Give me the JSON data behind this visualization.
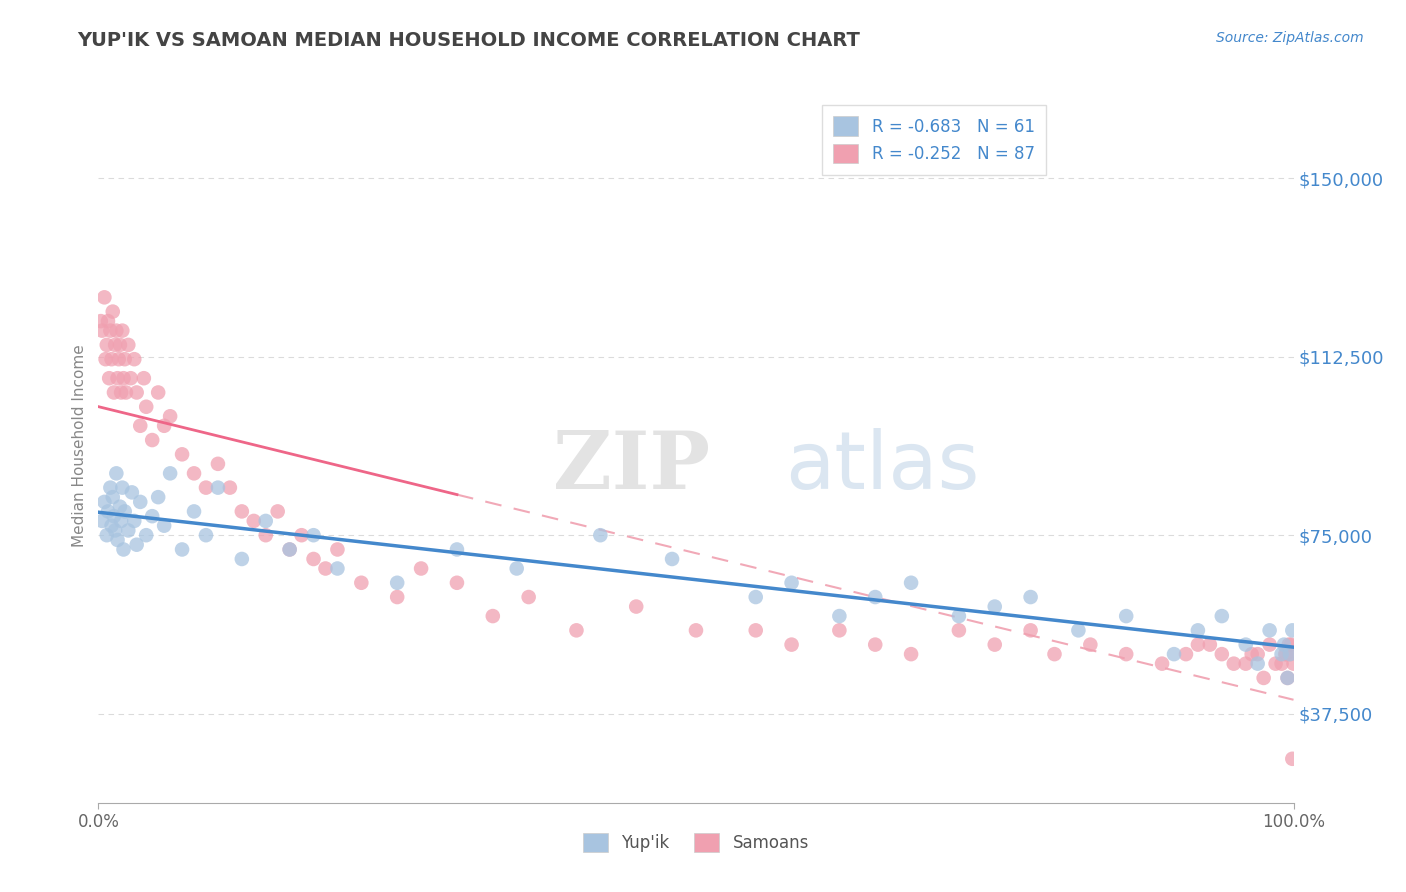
{
  "title": "YUP'IK VS SAMOAN MEDIAN HOUSEHOLD INCOME CORRELATION CHART",
  "source_text": "Source: ZipAtlas.com",
  "ylabel": "Median Household Income",
  "xlim": [
    0.0,
    100.0
  ],
  "ylim": [
    18750,
    168750
  ],
  "yticks": [
    37500,
    75000,
    112500,
    150000
  ],
  "ytick_labels": [
    "$37,500",
    "$75,000",
    "$112,500",
    "$150,000"
  ],
  "xticks": [
    0.0,
    100.0
  ],
  "xtick_labels": [
    "0.0%",
    "100.0%"
  ],
  "R_yupik": -0.683,
  "N_yupik": 61,
  "R_samoan": -0.252,
  "N_samoan": 87,
  "color_yupik": "#a8c4e0",
  "color_samoan": "#f0a0b0",
  "line_color_yupik": "#4488cc",
  "line_color_samoan": "#ee6688",
  "legend_label_yupik": "Yup'ik",
  "legend_label_samoan": "Samoans",
  "watermark": "ZIPatlas",
  "background_color": "#ffffff",
  "grid_color": "#cccccc",
  "title_color": "#444444",
  "axis_label_color": "#4488cc",
  "yupik_x": [
    0.3,
    0.5,
    0.7,
    0.8,
    1.0,
    1.1,
    1.2,
    1.3,
    1.4,
    1.5,
    1.6,
    1.8,
    1.9,
    2.0,
    2.1,
    2.2,
    2.5,
    2.8,
    3.0,
    3.2,
    3.5,
    4.0,
    4.5,
    5.0,
    5.5,
    6.0,
    7.0,
    8.0,
    9.0,
    10.0,
    12.0,
    14.0,
    16.0,
    18.0,
    20.0,
    25.0,
    30.0,
    35.0,
    42.0,
    48.0,
    55.0,
    58.0,
    62.0,
    65.0,
    68.0,
    72.0,
    75.0,
    78.0,
    82.0,
    86.0,
    90.0,
    92.0,
    94.0,
    96.0,
    97.0,
    98.0,
    99.0,
    99.2,
    99.5,
    99.7,
    99.9
  ],
  "yupik_y": [
    78000,
    82000,
    75000,
    80000,
    85000,
    77000,
    83000,
    79000,
    76000,
    88000,
    74000,
    81000,
    78000,
    85000,
    72000,
    80000,
    76000,
    84000,
    78000,
    73000,
    82000,
    75000,
    79000,
    83000,
    77000,
    88000,
    72000,
    80000,
    75000,
    85000,
    70000,
    78000,
    72000,
    75000,
    68000,
    65000,
    72000,
    68000,
    75000,
    70000,
    62000,
    65000,
    58000,
    62000,
    65000,
    58000,
    60000,
    62000,
    55000,
    58000,
    50000,
    55000,
    58000,
    52000,
    48000,
    55000,
    50000,
    52000,
    45000,
    50000,
    55000
  ],
  "samoan_x": [
    0.2,
    0.3,
    0.5,
    0.6,
    0.7,
    0.8,
    0.9,
    1.0,
    1.1,
    1.2,
    1.3,
    1.4,
    1.5,
    1.6,
    1.7,
    1.8,
    1.9,
    2.0,
    2.1,
    2.2,
    2.3,
    2.5,
    2.7,
    3.0,
    3.2,
    3.5,
    3.8,
    4.0,
    4.5,
    5.0,
    5.5,
    6.0,
    7.0,
    8.0,
    9.0,
    10.0,
    11.0,
    12.0,
    13.0,
    14.0,
    15.0,
    16.0,
    17.0,
    18.0,
    19.0,
    20.0,
    22.0,
    25.0,
    27.0,
    30.0,
    33.0,
    36.0,
    40.0,
    45.0,
    50.0,
    55.0,
    58.0,
    62.0,
    65.0,
    68.0,
    72.0,
    75.0,
    78.0,
    80.0,
    83.0,
    86.0,
    89.0,
    92.0,
    94.0,
    96.0,
    97.0,
    98.0,
    99.0,
    99.3,
    99.5,
    99.7,
    99.8,
    99.9,
    100.0,
    99.4,
    99.6,
    98.5,
    97.5,
    96.5,
    95.0,
    93.0,
    91.0
  ],
  "samoan_y": [
    120000,
    118000,
    125000,
    112000,
    115000,
    120000,
    108000,
    118000,
    112000,
    122000,
    105000,
    115000,
    118000,
    108000,
    112000,
    115000,
    105000,
    118000,
    108000,
    112000,
    105000,
    115000,
    108000,
    112000,
    105000,
    98000,
    108000,
    102000,
    95000,
    105000,
    98000,
    100000,
    92000,
    88000,
    85000,
    90000,
    85000,
    80000,
    78000,
    75000,
    80000,
    72000,
    75000,
    70000,
    68000,
    72000,
    65000,
    62000,
    68000,
    65000,
    58000,
    62000,
    55000,
    60000,
    55000,
    55000,
    52000,
    55000,
    52000,
    50000,
    55000,
    52000,
    55000,
    50000,
    52000,
    50000,
    48000,
    52000,
    50000,
    48000,
    50000,
    52000,
    48000,
    50000,
    45000,
    50000,
    52000,
    28000,
    48000,
    50000,
    52000,
    48000,
    45000,
    50000,
    48000,
    52000,
    50000
  ]
}
